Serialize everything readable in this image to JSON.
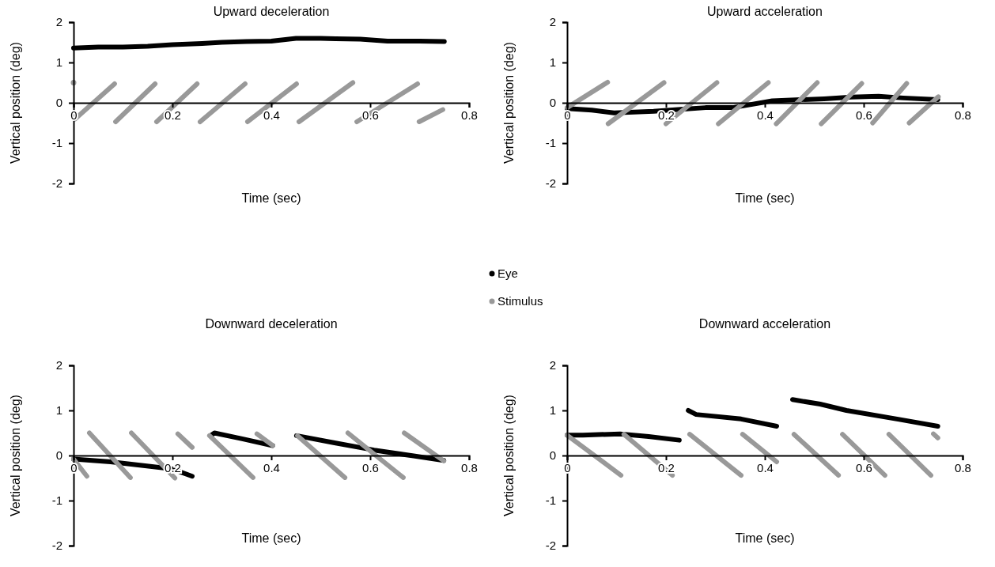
{
  "chart_data": [
    {
      "type": "line",
      "title": "Upward deceleration",
      "xlabel": "Time (sec)",
      "ylabel": "Vertical position (deg)",
      "xlim": [
        0,
        0.8
      ],
      "xticks": [
        0,
        0.2,
        0.4,
        0.6,
        0.8
      ],
      "ylim": [
        -2,
        2
      ],
      "yticks": [
        -2,
        -1,
        0,
        1,
        2
      ],
      "legend": "bottom",
      "series": [
        {
          "name": "Eye",
          "color": "#000000",
          "x": [
            0,
            0.05,
            0.1,
            0.15,
            0.2,
            0.26,
            0.3,
            0.35,
            0.4,
            0.45,
            0.5,
            0.53,
            0.58,
            0.635,
            0.7,
            0.75
          ],
          "values": [
            1.36,
            1.38,
            1.38,
            1.4,
            1.44,
            1.47,
            1.5,
            1.52,
            1.53,
            1.6,
            1.6,
            1.59,
            1.58,
            1.53,
            1.53,
            1.52
          ]
        },
        {
          "name": "Stimulus",
          "color": "#999999",
          "x": [
            0,
            null,
            0.003,
            0.083,
            null,
            0.085,
            0.165,
            null,
            0.168,
            0.25,
            null,
            0.256,
            0.347,
            null,
            0.352,
            0.451,
            null,
            0.456,
            0.565,
            null,
            0.573,
            0.696,
            null,
            0.699,
            0.747
          ],
          "values": [
            0.5,
            null,
            -0.4,
            0.47,
            null,
            -0.47,
            0.47,
            null,
            -0.47,
            0.47,
            null,
            -0.47,
            0.47,
            null,
            -0.47,
            0.47,
            null,
            -0.47,
            0.5,
            null,
            -0.47,
            0.47,
            null,
            -0.47,
            -0.17
          ]
        }
      ]
    },
    {
      "type": "line",
      "title": "Upward acceleration",
      "xlabel": "Time (sec)",
      "ylabel": "Vertical position (deg)",
      "xlim": [
        0,
        0.8
      ],
      "xticks": [
        0,
        0.2,
        0.4,
        0.6,
        0.8
      ],
      "ylim": [
        -2,
        2
      ],
      "yticks": [
        -2,
        -1,
        0,
        1,
        2
      ],
      "series": [
        {
          "color": "#000000",
          "x": [
            0,
            0.05,
            0.095,
            0.175,
            0.23,
            0.28,
            0.335,
            0.415,
            0.52,
            0.575,
            0.63,
            0.68,
            0.75
          ],
          "values": [
            -0.14,
            -0.18,
            -0.25,
            -0.21,
            -0.16,
            -0.12,
            -0.12,
            0.05,
            0.1,
            0.14,
            0.16,
            0.12,
            0.08
          ]
        },
        {
          "color": "#999999",
          "x": [
            0,
            0.082,
            null,
            0.083,
            0.196,
            null,
            0.2,
            0.303,
            null,
            0.306,
            0.407,
            null,
            0.423,
            0.506,
            null,
            0.514,
            0.596,
            null,
            0.618,
            0.687,
            null,
            0.692,
            0.751
          ],
          "values": [
            -0.12,
            0.51,
            null,
            -0.52,
            0.5,
            null,
            -0.52,
            0.5,
            null,
            -0.52,
            0.5,
            null,
            -0.52,
            0.5,
            null,
            -0.52,
            0.48,
            null,
            -0.5,
            0.48,
            null,
            -0.5,
            0.15
          ]
        }
      ]
    },
    {
      "type": "line",
      "title": "Downward deceleration",
      "xlabel": "Time (sec)",
      "ylabel": "Vertical position (deg)",
      "xlim": [
        0,
        0.8
      ],
      "xticks": [
        0,
        0.2,
        0.4,
        0.6,
        0.8
      ],
      "ylim": [
        -2,
        2
      ],
      "yticks": [
        -2,
        -1,
        0,
        1,
        2
      ],
      "series": [
        {
          "color": "#000000",
          "x": [
            0,
            0.075,
            0.155,
            0.2,
            0.24,
            null,
            0.277,
            0.285,
            0.341,
            0.403,
            null,
            0.451,
            0.528,
            0.608,
            0.688,
            0.749
          ],
          "values": [
            -0.08,
            -0.14,
            -0.24,
            -0.3,
            -0.46,
            null,
            0.44,
            0.5,
            0.37,
            0.22,
            null,
            0.44,
            0.28,
            0.12,
            -0.01,
            -0.11
          ]
        },
        {
          "color": "#999999",
          "x": [
            0,
            0.027,
            null,
            0.032,
            0.115,
            null,
            0.117,
            0.205,
            null,
            0.211,
            0.24,
            null,
            0.275,
            0.363,
            null,
            0.371,
            0.403,
            null,
            0.453,
            0.549,
            null,
            0.555,
            0.667,
            null,
            0.669,
            0.749
          ],
          "values": [
            -0.08,
            -0.46,
            null,
            0.5,
            -0.49,
            null,
            0.5,
            -0.5,
            null,
            0.48,
            0.18,
            null,
            0.44,
            -0.49,
            null,
            0.48,
            0.22,
            null,
            0.44,
            -0.49,
            null,
            0.5,
            -0.49,
            null,
            0.5,
            -0.12
          ]
        }
      ]
    },
    {
      "type": "line",
      "title": "Downward acceleration",
      "xlabel": "Time (sec)",
      "ylabel": "Vertical position (deg)",
      "xlim": [
        0,
        0.8
      ],
      "xticks": [
        0,
        0.2,
        0.4,
        0.6,
        0.8
      ],
      "ylim": [
        -2,
        2
      ],
      "yticks": [
        -2,
        -1,
        0,
        1,
        2
      ],
      "series": [
        {
          "color": "#000000",
          "x": [
            0,
            0.032,
            0.107,
            0.165,
            0.227,
            null,
            0.245,
            0.261,
            0.352,
            0.424,
            null,
            0.456,
            0.512,
            0.565,
            0.672,
            0.75
          ],
          "values": [
            0.45,
            0.45,
            0.48,
            0.42,
            0.34,
            null,
            1.0,
            0.91,
            0.81,
            0.65,
            null,
            1.24,
            1.14,
            1.0,
            0.8,
            0.65
          ]
        },
        {
          "color": "#999999",
          "x": [
            0,
            0.109,
            null,
            0.115,
            0.213,
            null,
            0.248,
            0.352,
            null,
            0.355,
            0.424,
            null,
            0.459,
            0.549,
            null,
            0.557,
            0.643,
            null,
            0.651,
            0.736,
            null,
            0.741,
            0.75
          ],
          "values": [
            0.45,
            -0.44,
            null,
            0.47,
            -0.44,
            null,
            0.47,
            -0.44,
            null,
            0.47,
            -0.14,
            null,
            0.47,
            -0.44,
            null,
            0.47,
            -0.44,
            null,
            0.47,
            -0.44,
            null,
            0.48,
            0.39
          ]
        }
      ]
    }
  ]
}
